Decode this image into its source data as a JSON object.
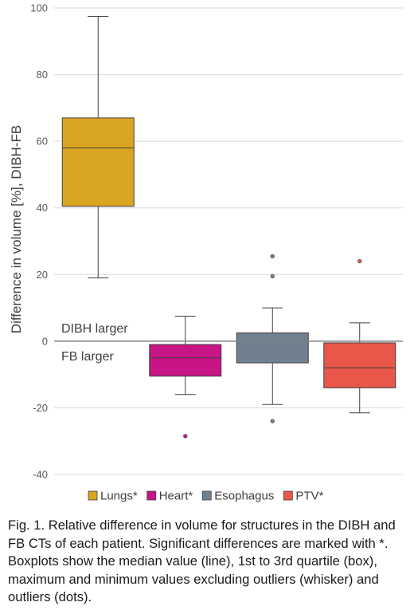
{
  "chart_data": {
    "type": "boxplot",
    "ylabel": "Difference in volume [%], DIBH-FB",
    "ylim": [
      -40,
      100
    ],
    "yticks": [
      100,
      80,
      60,
      40,
      20,
      0,
      -20,
      -40
    ],
    "grid": true,
    "legend_position": "bottom",
    "annotations": {
      "above_zero": "DIBH larger",
      "below_zero": "FB larger"
    },
    "series": [
      {
        "name": "Lungs*",
        "color": "#DAA520",
        "min": 19,
        "q1": 40.5,
        "median": 58,
        "q3": 67,
        "max": 97.5,
        "outliers": []
      },
      {
        "name": "Heart*",
        "color": "#C71585",
        "min": -16,
        "q1": -10.5,
        "median": -5,
        "q3": -1,
        "max": 7.5,
        "outliers": [
          -28.5
        ]
      },
      {
        "name": "Esophagus",
        "color": "#708090",
        "min": -19,
        "q1": -6.5,
        "median": 0,
        "q3": 2.5,
        "max": 10,
        "outliers": [
          25.5,
          19.5,
          -24
        ]
      },
      {
        "name": "PTV*",
        "color": "#E8574A",
        "min": -21.5,
        "q1": -14,
        "median": -8,
        "q3": -0.5,
        "max": 5.5,
        "outliers": [
          24
        ]
      }
    ]
  },
  "caption": "Fig. 1. Relative difference in volume for structures in the DIBH and FB CTs of each patient. Significant differences are marked with *. Boxplots show the median value (line), 1st to 3rd quartile (box), maximum and minimum values excluding outliers (whisker) and outliers (dots)."
}
